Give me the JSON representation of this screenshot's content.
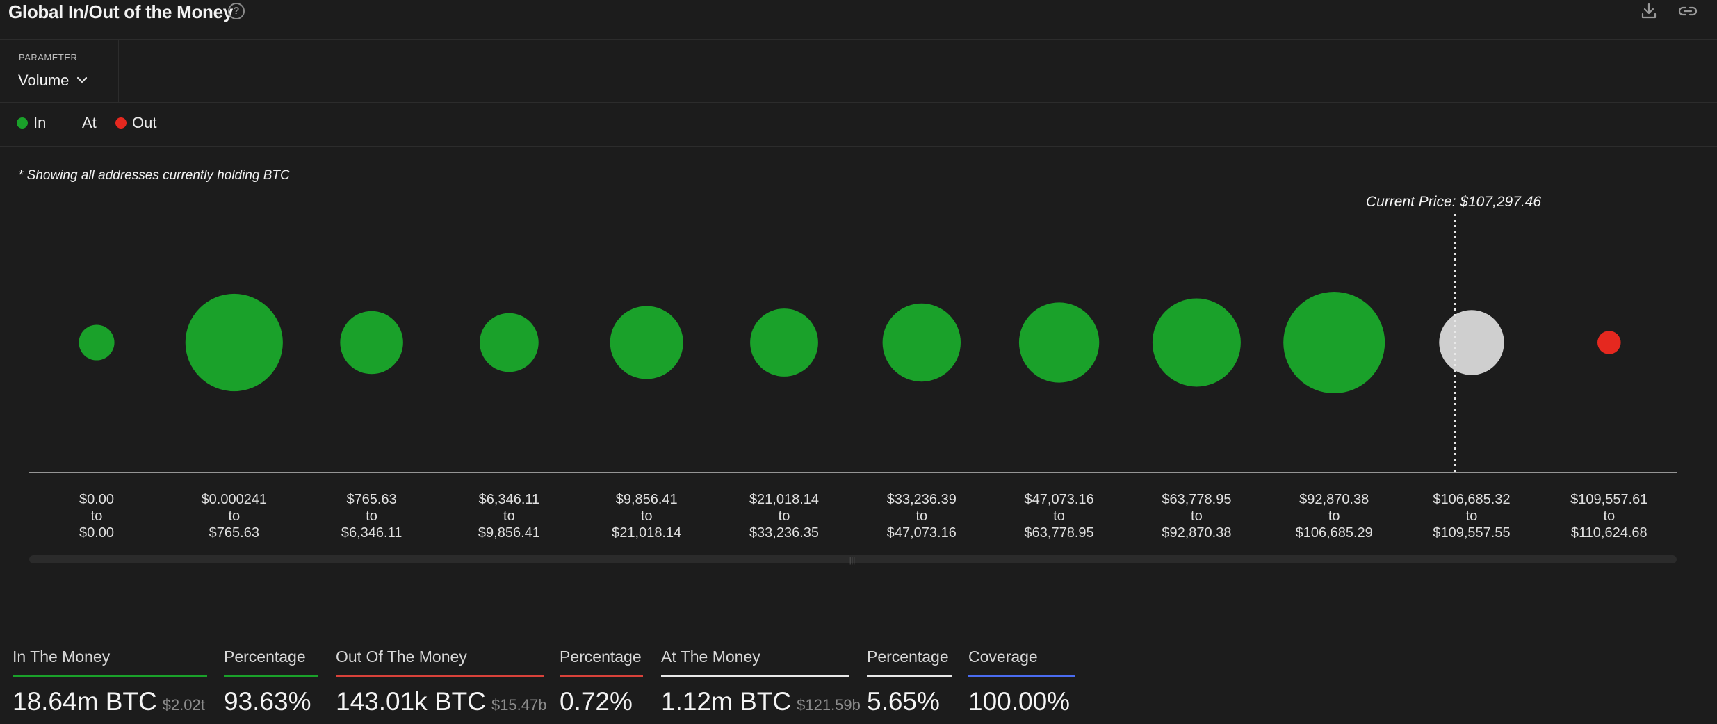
{
  "header": {
    "title": "Global In/Out of the Money",
    "help_icon": "question-circle-icon",
    "help_glyph": "?",
    "actions": [
      "download-icon",
      "link-icon"
    ]
  },
  "parameter": {
    "label": "PARAMETER",
    "value": "Volume",
    "icon": "chevron-down-icon"
  },
  "legend": [
    {
      "label": "In",
      "color": "#1aa12a",
      "has_dot": true
    },
    {
      "label": "At",
      "color": "#cfcfcf",
      "has_dot": false
    },
    {
      "label": "Out",
      "color": "#e5281f",
      "has_dot": true
    }
  ],
  "note": "* Showing all addresses currently holding BTC",
  "chart_data": {
    "type": "bubble",
    "current_price_label": "Current Price: $107,297.46",
    "current_price_bucket_index": 10,
    "categories": [
      {
        "from": "$0.00",
        "to": "$0.00",
        "status": "in",
        "relative_size": 0.35
      },
      {
        "from": "$0.000241",
        "to": "$765.63",
        "status": "in",
        "relative_size": 0.96
      },
      {
        "from": "$765.63",
        "to": "$6,346.11",
        "status": "in",
        "relative_size": 0.62
      },
      {
        "from": "$6,346.11",
        "to": "$9,856.41",
        "status": "in",
        "relative_size": 0.58
      },
      {
        "from": "$9,856.41",
        "to": "$21,018.14",
        "status": "in",
        "relative_size": 0.72
      },
      {
        "from": "$21,018.14",
        "to": "$33,236.35",
        "status": "in",
        "relative_size": 0.67
      },
      {
        "from": "$33,236.39",
        "to": "$47,073.16",
        "status": "in",
        "relative_size": 0.77
      },
      {
        "from": "$47,073.16",
        "to": "$63,778.95",
        "status": "in",
        "relative_size": 0.79
      },
      {
        "from": "$63,778.95",
        "to": "$92,870.38",
        "status": "in",
        "relative_size": 0.87
      },
      {
        "from": "$92,870.38",
        "to": "$106,685.29",
        "status": "in",
        "relative_size": 1.0
      },
      {
        "from": "$106,685.32",
        "to": "$109,557.55",
        "status": "at",
        "relative_size": 0.64
      },
      {
        "from": "$109,557.61",
        "to": "$110,624.68",
        "status": "out",
        "relative_size": 0.23
      }
    ],
    "connector": "to",
    "colors": {
      "in": "#1aa12a",
      "at": "#cfcfcf",
      "out": "#e5281f"
    }
  },
  "stats": [
    {
      "label": "In The Money",
      "value": "18.64m BTC",
      "sub": "$2.02t",
      "color": "#1aa12a"
    },
    {
      "label": "Percentage",
      "value": "93.63%",
      "sub": "",
      "color": "#1aa12a"
    },
    {
      "label": "Out Of The Money",
      "value": "143.01k BTC",
      "sub": "$15.47b",
      "color": "#d9423a"
    },
    {
      "label": "Percentage",
      "value": "0.72%",
      "sub": "",
      "color": "#d9423a"
    },
    {
      "label": "At The Money",
      "value": "1.12m BTC",
      "sub": "$121.59b",
      "color": "#e8e8e8"
    },
    {
      "label": "Percentage",
      "value": "5.65%",
      "sub": "",
      "color": "#e8e8e8"
    },
    {
      "label": "Coverage",
      "value": "100.00%",
      "sub": "",
      "color": "#4a6cf0"
    }
  ]
}
